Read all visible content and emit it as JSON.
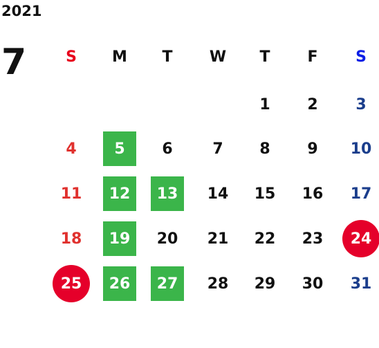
{
  "header": {
    "year": "2021",
    "month": "7"
  },
  "weekdays": [
    "S",
    "M",
    "T",
    "W",
    "T",
    "F",
    "S"
  ],
  "weeks": [
    [
      null,
      null,
      null,
      null,
      "1",
      "2",
      "3"
    ],
    [
      "4",
      {
        "label": "5",
        "style": "green"
      },
      "6",
      "7",
      "8",
      "9",
      "10"
    ],
    [
      "11",
      {
        "label": "12",
        "style": "green"
      },
      {
        "label": "13",
        "style": "green"
      },
      "14",
      "15",
      "16",
      "17"
    ],
    [
      "18",
      {
        "label": "19",
        "style": "green"
      },
      "20",
      "21",
      "22",
      "23",
      {
        "label": "24",
        "style": "red"
      }
    ],
    [
      {
        "label": "25",
        "style": "red"
      },
      {
        "label": "26",
        "style": "green"
      },
      {
        "label": "27",
        "style": "green"
      },
      "28",
      "29",
      "30",
      "31"
    ]
  ]
}
